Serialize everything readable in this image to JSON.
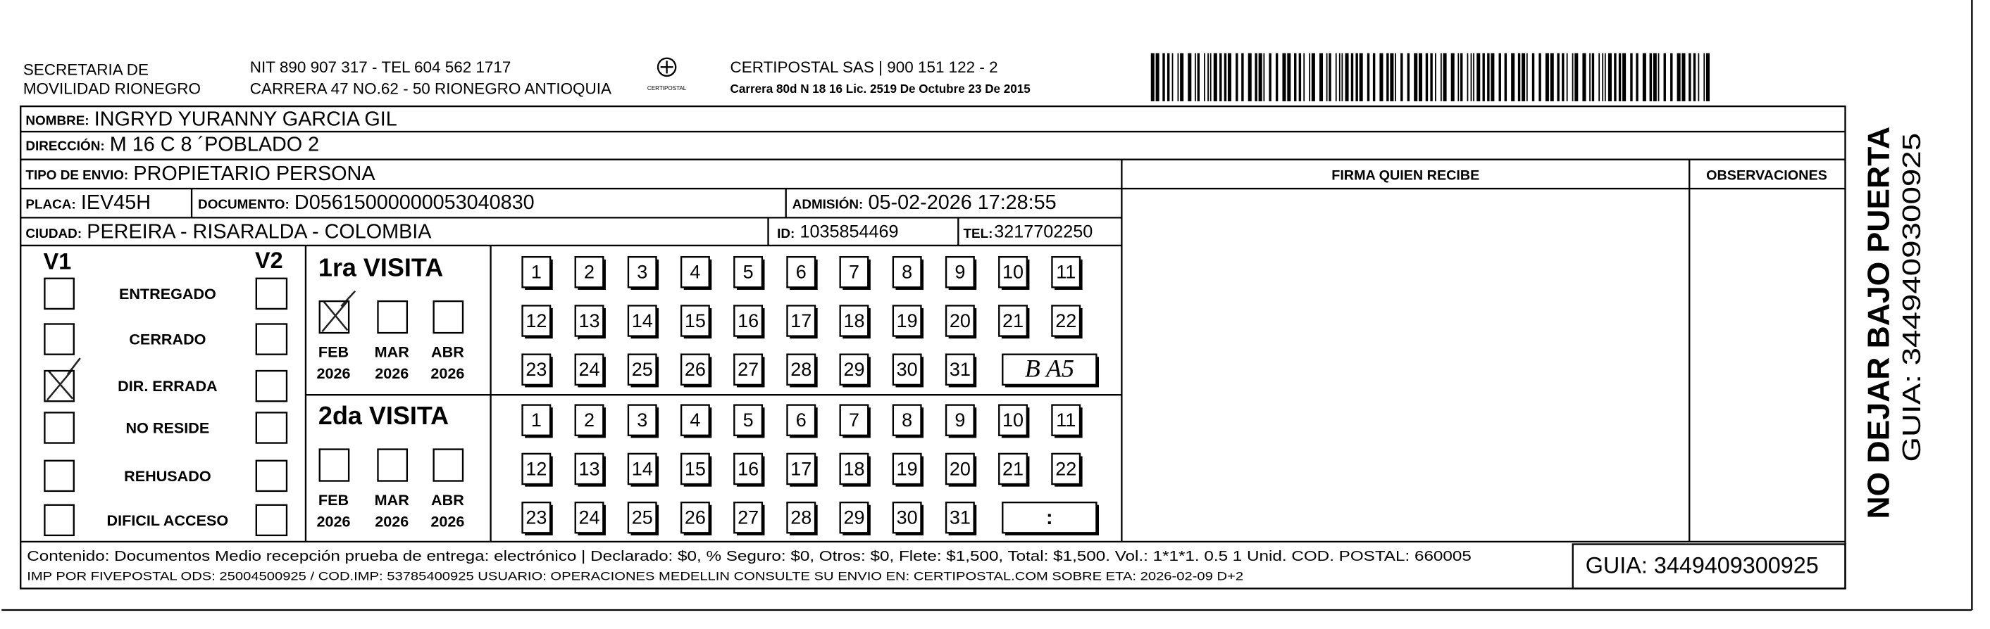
{
  "header": {
    "issuer": [
      "SECRETARIA DE",
      "MOVILIDAD RIONEGRO"
    ],
    "issuer_contact": [
      "NIT 890 907 317 - TEL 604 562 1717",
      "CARRERA 47 NO.62 - 50 RIONEGRO ANTIOQUIA"
    ],
    "logo_text": "CERTIPOSTAL",
    "carrier": [
      "CERTIPOSTAL SAS | 900 151 122 - 2",
      "Carrera 80d N 18 16  Lic. 2519 De Octubre 23 De 2015"
    ]
  },
  "recipient": {
    "name": {
      "label": "NOMBRE:",
      "value": "INGRYD YURANNY GARCIA GIL"
    },
    "address": {
      "label": "DIRECCIÓN:",
      "value": "M 16 C 8 ´POBLADO 2"
    },
    "shipment_type": {
      "label": "TIPO DE ENVIO:",
      "value": "PROPIETARIO PERSONA"
    },
    "plate": {
      "label": "PLACA:",
      "value": "IEV45H"
    },
    "document": {
      "label": "DOCUMENTO:",
      "value": "D05615000000053040830"
    },
    "admission": {
      "label": "ADMISIÓN:",
      "value": "05-02-2026 17:28:55"
    },
    "city": {
      "label": "CIUDAD:",
      "value": "PEREIRA - RISARALDA - COLOMBIA"
    },
    "id": {
      "label": "ID:",
      "value": "1035854469"
    },
    "phone": {
      "label": "TEL:",
      "value": "3217702250"
    }
  },
  "columns": {
    "signature": "FIRMA QUIEN RECIBE",
    "observations": "OBSERVACIONES"
  },
  "status": {
    "v1": "V1",
    "v2": "V2",
    "options": [
      "ENTREGADO",
      "CERRADO",
      "DIR. ERRADA",
      "NO RESIDE",
      "REHUSADO",
      "DIFICIL ACCESO"
    ]
  },
  "visits": [
    {
      "title": "1ra VISITA",
      "months": [
        {
          "month": "FEB",
          "year": "2026"
        },
        {
          "month": "MAR",
          "year": "2026"
        },
        {
          "month": "ABR",
          "year": "2026"
        }
      ],
      "days": [
        1,
        2,
        3,
        4,
        5,
        6,
        7,
        8,
        9,
        10,
        11,
        12,
        13,
        14,
        15,
        16,
        17,
        18,
        19,
        20,
        21,
        22,
        23,
        24,
        25,
        26,
        27,
        28,
        29,
        30,
        31
      ],
      "time": "B A5"
    },
    {
      "title": "2da VISITA",
      "months": [
        {
          "month": "FEB",
          "year": "2026"
        },
        {
          "month": "MAR",
          "year": "2026"
        },
        {
          "month": "ABR",
          "year": "2026"
        }
      ],
      "days": [
        1,
        2,
        3,
        4,
        5,
        6,
        7,
        8,
        9,
        10,
        11,
        12,
        13,
        14,
        15,
        16,
        17,
        18,
        19,
        20,
        21,
        22,
        23,
        24,
        25,
        26,
        27,
        28,
        29,
        30,
        31
      ],
      "time": ":"
    }
  ],
  "footer": {
    "content": "Contenido: Documentos Medio recepción prueba de entrega: electrónico | Declarado: $0, % Seguro: $0, Otros: $0, Flete: $1,500, Total: $1,500. Vol.: 1*1*1. 0.5  1 Unid. COD. POSTAL: 660005",
    "print_info": "IMP POR FIVEPOSTAL ODS: 25004500925 / COD.IMP: 53785400925 USUARIO: OPERACIONES MEDELLIN CONSULTE SU ENVIO EN: CERTIPOSTAL.COM SOBRE ETA: 2026-02-09 D+2",
    "guide": "GUIA: 3449409300925"
  },
  "side": {
    "notice": "NO DEJAR BAJO PUERTA",
    "guide": "GUIA: 3449409300925"
  }
}
